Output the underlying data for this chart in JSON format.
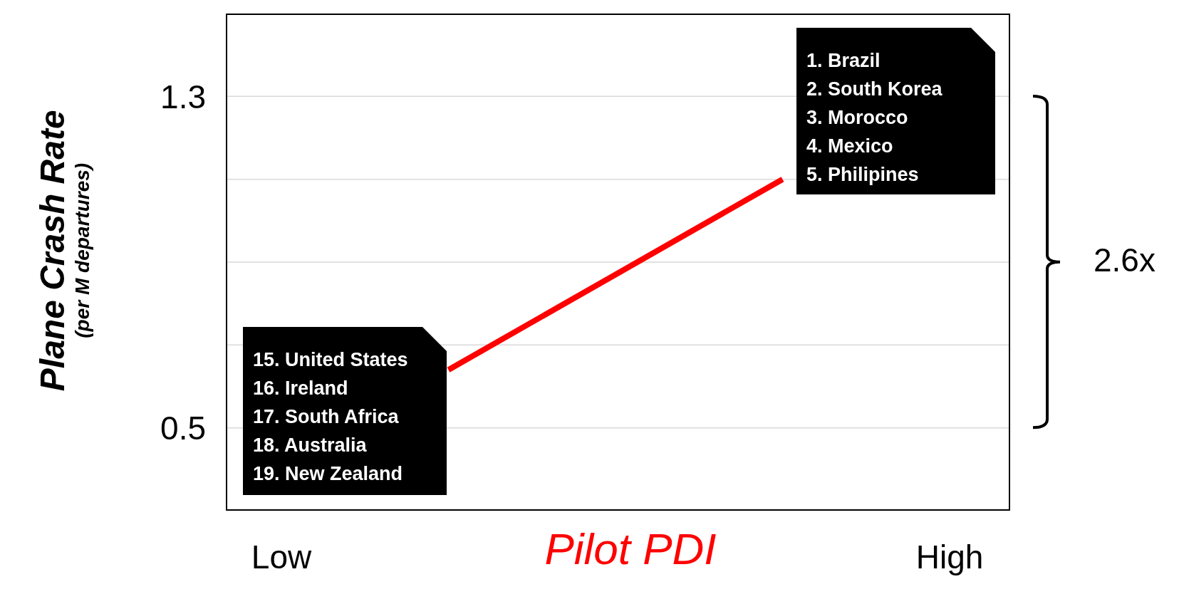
{
  "chart_data": {
    "type": "line",
    "xlabel": "Pilot PDI",
    "ylabel": "Plane Crash Rate\n(per M departures)",
    "categories": [
      "Low",
      null,
      null,
      null,
      "High"
    ],
    "series": [
      {
        "color": "#ff0000",
        "values": [
          null,
          0.64,
          0.87,
          1.1,
          null
        ]
      }
    ],
    "ylim": [
      0.3,
      1.5
    ],
    "yticks": [
      {
        "value": 0.5,
        "label": "0.5"
      },
      {
        "value": 0.7,
        "label": null
      },
      {
        "value": 0.9,
        "label": null
      },
      {
        "value": 1.1,
        "label": null
      },
      {
        "value": 1.3,
        "label": "1.3"
      }
    ],
    "grid": "y",
    "marker": "none",
    "line_style": "solid",
    "annotations": [
      "1.\tBrazil\n2.\tSouth Korea\n3.\tMorocco\n4.\tMexico\n5.\tPhilipines",
      "15. United States\n16. Ireland\n17. South Africa\n18. Australia\n19. New Zealand",
      "2.6x"
    ]
  }
}
